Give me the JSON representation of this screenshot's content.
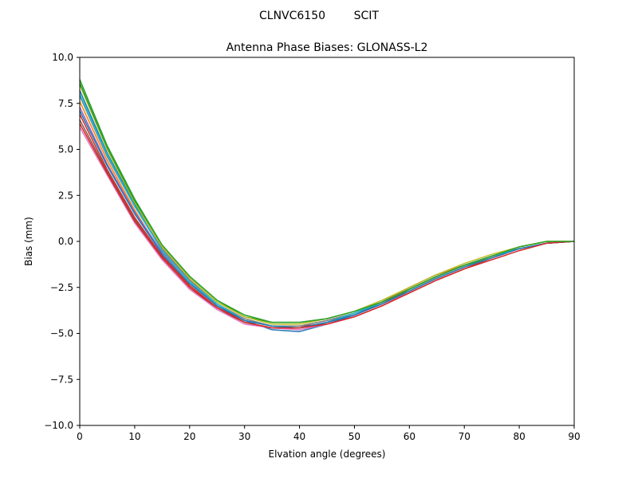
{
  "figure": {
    "suptitle": "CLNVC6150        SCIT"
  },
  "chart_data": {
    "type": "line",
    "title": "Antenna Phase Biases: GLONASS-L2",
    "xlabel": "Elvation angle (degrees)",
    "ylabel": "Bias (mm)",
    "xlim": [
      0,
      90
    ],
    "ylim": [
      -10,
      10
    ],
    "xticks": [
      0,
      10,
      20,
      30,
      40,
      50,
      60,
      70,
      80,
      90
    ],
    "xtick_labels": [
      "0",
      "10",
      "20",
      "30",
      "40",
      "50",
      "60",
      "70",
      "80",
      "90"
    ],
    "yticks": [
      10,
      7.5,
      5,
      2.5,
      0,
      -2.5,
      -5,
      -7.5,
      -10
    ],
    "ytick_labels": [
      "10.0",
      "7.5",
      "5.0",
      "2.5",
      "0.0",
      "−2.5",
      "−5.0",
      "−7.5",
      "−10.0"
    ],
    "grid": false,
    "legend": "none",
    "x": [
      0,
      5,
      10,
      15,
      20,
      25,
      30,
      35,
      40,
      45,
      50,
      55,
      60,
      65,
      70,
      75,
      80,
      85,
      90
    ],
    "series": [
      {
        "color": "#1f77b4",
        "values": [
          8.2,
          4.8,
          2.0,
          -0.5,
          -2.2,
          -3.5,
          -4.3,
          -4.8,
          -4.9,
          -4.5,
          -4.0,
          -3.3,
          -2.5,
          -1.8,
          -1.3,
          -0.8,
          -0.4,
          -0.1,
          0.0
        ]
      },
      {
        "color": "#ff7f0e",
        "values": [
          7.6,
          4.4,
          1.7,
          -0.7,
          -2.4,
          -3.6,
          -4.4,
          -4.7,
          -4.7,
          -4.4,
          -3.9,
          -3.3,
          -2.5,
          -1.8,
          -1.3,
          -0.8,
          -0.4,
          -0.1,
          0.0
        ]
      },
      {
        "color": "#2ca02c",
        "values": [
          8.8,
          5.2,
          2.3,
          -0.2,
          -1.9,
          -3.2,
          -4.1,
          -4.4,
          -4.4,
          -4.2,
          -3.8,
          -3.3,
          -2.7,
          -2.0,
          -1.4,
          -0.8,
          -0.3,
          0.0,
          0.0
        ]
      },
      {
        "color": "#d62728",
        "values": [
          6.9,
          3.9,
          1.3,
          -0.8,
          -2.4,
          -3.6,
          -4.3,
          -4.6,
          -4.6,
          -4.5,
          -4.1,
          -3.5,
          -2.8,
          -2.1,
          -1.5,
          -0.9,
          -0.4,
          -0.1,
          0.0
        ]
      },
      {
        "color": "#9467bd",
        "values": [
          7.3,
          4.2,
          1.6,
          -0.6,
          -2.2,
          -3.5,
          -4.3,
          -4.6,
          -4.6,
          -4.3,
          -3.9,
          -3.3,
          -2.6,
          -1.9,
          -1.3,
          -0.8,
          -0.4,
          -0.1,
          0.0
        ]
      },
      {
        "color": "#8c564b",
        "values": [
          6.6,
          3.8,
          1.2,
          -0.9,
          -2.5,
          -3.7,
          -4.4,
          -4.7,
          -4.7,
          -4.4,
          -4.0,
          -3.4,
          -2.6,
          -1.9,
          -1.3,
          -0.8,
          -0.4,
          -0.1,
          0.0
        ]
      },
      {
        "color": "#e377c2",
        "values": [
          6.2,
          3.6,
          1.0,
          -1.0,
          -2.6,
          -3.7,
          -4.5,
          -4.7,
          -4.8,
          -4.5,
          -4.1,
          -3.5,
          -2.7,
          -2.0,
          -1.4,
          -0.9,
          -0.4,
          -0.1,
          0.0
        ]
      },
      {
        "color": "#7f7f7f",
        "values": [
          7.9,
          4.6,
          1.9,
          -0.4,
          -2.1,
          -3.4,
          -4.2,
          -4.6,
          -4.6,
          -4.3,
          -3.9,
          -3.3,
          -2.6,
          -1.9,
          -1.3,
          -0.8,
          -0.4,
          -0.1,
          0.0
        ]
      },
      {
        "color": "#bcbd22",
        "values": [
          8.5,
          5.0,
          2.1,
          -0.3,
          -2.0,
          -3.3,
          -4.1,
          -4.5,
          -4.5,
          -4.2,
          -3.8,
          -3.2,
          -2.5,
          -1.8,
          -1.2,
          -0.7,
          -0.3,
          0.0,
          0.0
        ]
      },
      {
        "color": "#17becf",
        "values": [
          8.0,
          4.7,
          1.9,
          -0.5,
          -2.2,
          -3.4,
          -4.3,
          -4.6,
          -4.7,
          -4.4,
          -3.9,
          -3.3,
          -2.6,
          -1.9,
          -1.3,
          -0.8,
          -0.4,
          -0.1,
          0.0
        ]
      },
      {
        "color": "#1f77b4",
        "values": [
          7.1,
          4.1,
          1.5,
          -0.7,
          -2.3,
          -3.5,
          -4.3,
          -4.6,
          -4.7,
          -4.4,
          -4.0,
          -3.4,
          -2.7,
          -2.0,
          -1.4,
          -0.9,
          -0.4,
          -0.1,
          0.0
        ]
      },
      {
        "color": "#d62728",
        "values": [
          6.4,
          3.7,
          1.1,
          -0.9,
          -2.5,
          -3.6,
          -4.4,
          -4.7,
          -4.7,
          -4.5,
          -4.1,
          -3.5,
          -2.8,
          -2.1,
          -1.5,
          -1.0,
          -0.5,
          -0.1,
          0.0
        ]
      },
      {
        "color": "#2ca02c",
        "values": [
          8.6,
          5.1,
          2.2,
          -0.2,
          -1.9,
          -3.2,
          -4.0,
          -4.4,
          -4.4,
          -4.2,
          -3.8,
          -3.3,
          -2.6,
          -1.9,
          -1.3,
          -0.8,
          -0.3,
          0.0,
          0.0
        ]
      }
    ]
  }
}
